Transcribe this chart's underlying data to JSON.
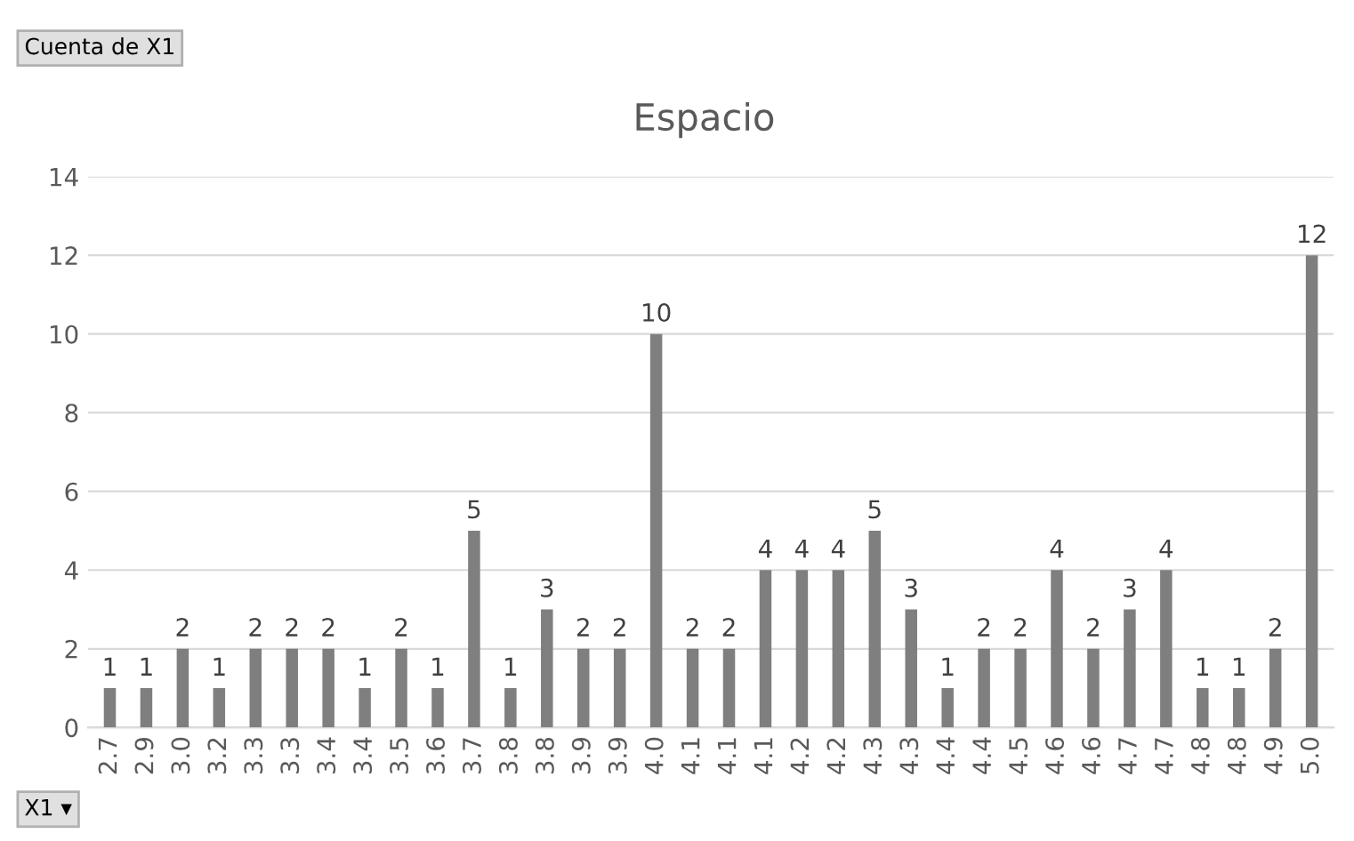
{
  "chart_data": {
    "type": "bar",
    "title": "Espacio",
    "categories": [
      "2.7",
      "2.9",
      "3.0",
      "3.2",
      "3.3",
      "3.3",
      "3.4",
      "3.4",
      "3.5",
      "3.6",
      "3.7",
      "3.8",
      "3.8",
      "3.9",
      "3.9",
      "4.0",
      "4.1",
      "4.1",
      "4.1",
      "4.2",
      "4.2",
      "4.3",
      "4.3",
      "4.4",
      "4.4",
      "4.5",
      "4.6",
      "4.6",
      "4.7",
      "4.7",
      "4.8",
      "4.8",
      "4.9",
      "5.0"
    ],
    "values": [
      1,
      1,
      2,
      1,
      2,
      2,
      2,
      1,
      2,
      1,
      5,
      1,
      3,
      2,
      2,
      10,
      2,
      2,
      4,
      4,
      4,
      5,
      3,
      1,
      2,
      2,
      4,
      2,
      3,
      4,
      1,
      1,
      2,
      12
    ],
    "color": "#7f7f7f",
    "ylim": [
      0,
      14
    ],
    "yticks": [
      0,
      2,
      4,
      6,
      8,
      10,
      12,
      14
    ],
    "grid": "y",
    "data_labels": true,
    "legend": false,
    "annotations": [
      "Cuenta de X1",
      "X1 ▾"
    ]
  }
}
